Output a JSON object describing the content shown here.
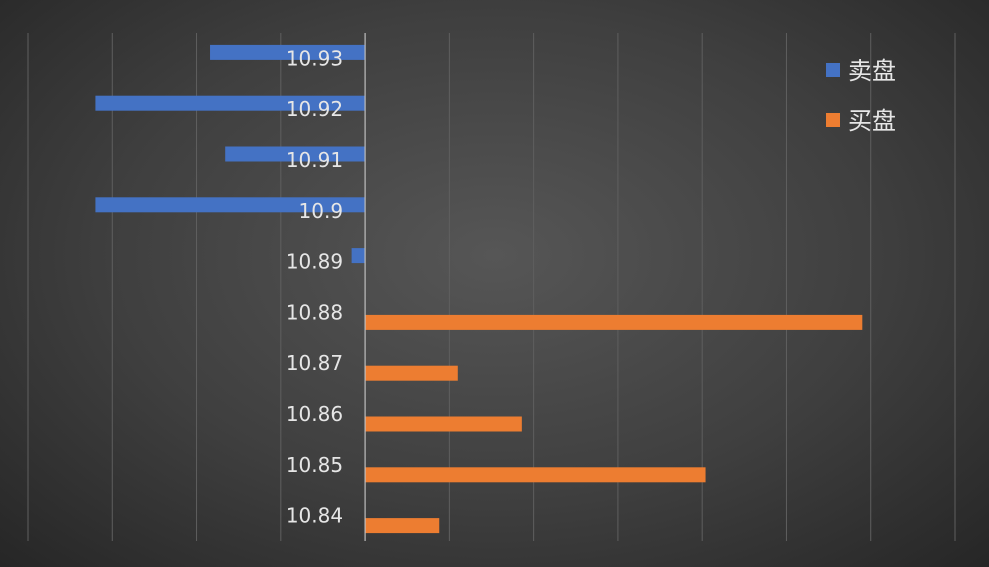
{
  "chart_data": {
    "type": "bar",
    "orientation": "horizontal",
    "categories": [
      "10.93",
      "10.92",
      "10.91",
      "10.9",
      "10.89",
      "10.88",
      "10.87",
      "10.86",
      "10.85",
      "10.84"
    ],
    "series": [
      {
        "name": "卖盘",
        "color": "#4472C4",
        "values": [
          -9.2,
          -16,
          -8.3,
          -16,
          -0.8,
          0,
          0,
          0,
          0,
          0
        ]
      },
      {
        "name": "买盘",
        "color": "#ED7D31",
        "values": [
          0,
          0,
          0,
          0,
          0,
          29.5,
          5.5,
          9.3,
          20.2,
          4.4
        ]
      }
    ],
    "xlim": [
      -20,
      35
    ],
    "x_gridline_step": 5,
    "grid": true,
    "legend_position": "top-right",
    "title": "",
    "xlabel": "",
    "ylabel": ""
  }
}
